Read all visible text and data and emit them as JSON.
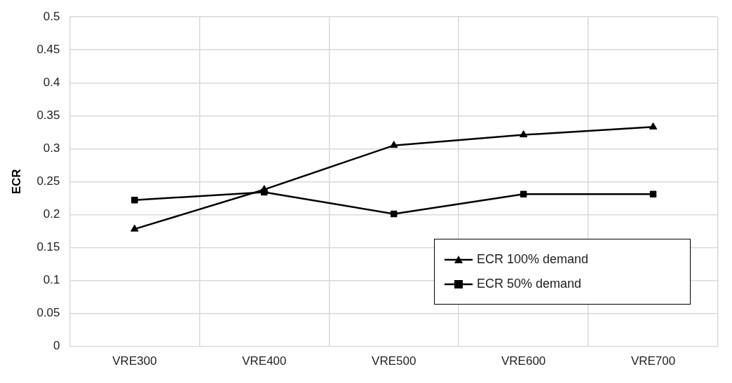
{
  "chart_data": {
    "type": "line",
    "ylabel": "ECR",
    "categories": [
      "VRE300",
      "VRE400",
      "VRE500",
      "VRE600",
      "VRE700"
    ],
    "series": [
      {
        "name": "ECR 100% demand",
        "color": "#000000",
        "marker": "triangle",
        "values": [
          0.178,
          0.238,
          0.305,
          0.321,
          0.333
        ]
      },
      {
        "name": "ECR 50% demand",
        "color": "#000000",
        "marker": "square",
        "values": [
          0.222,
          0.234,
          0.201,
          0.231,
          0.231
        ]
      }
    ],
    "ylim": [
      0,
      0.5
    ],
    "yticks": [
      0,
      0.05,
      0.1,
      0.15,
      0.2,
      0.25,
      0.3,
      0.35,
      0.4,
      0.45,
      0.5
    ],
    "grid": true,
    "legend": "bottom right",
    "line_style": "solid"
  }
}
